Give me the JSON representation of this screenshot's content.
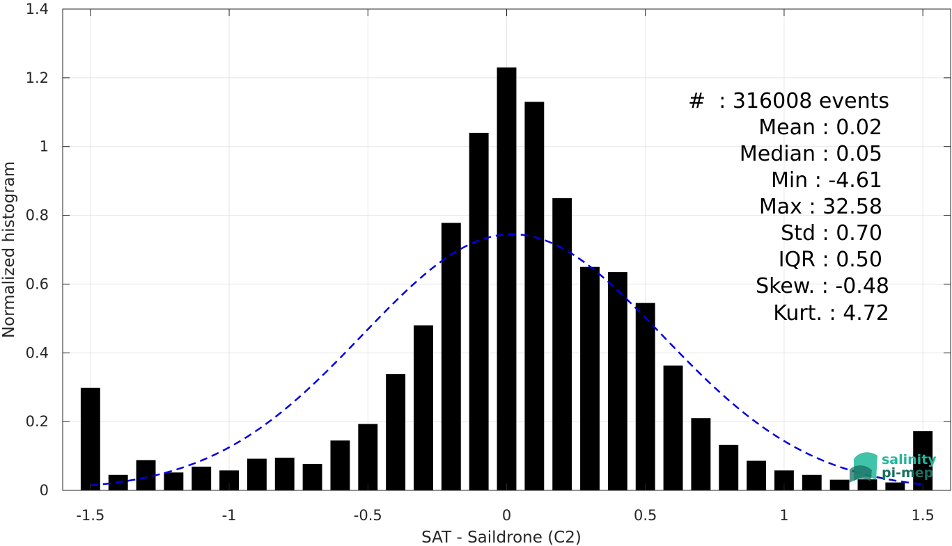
{
  "chart_data": {
    "type": "bar",
    "xlabel": "SAT - Saildrone (C2)",
    "ylabel": "Normalized histogram",
    "xlim": [
      -1.6,
      1.6
    ],
    "ylim": [
      0,
      1.4
    ],
    "grid": true,
    "x": [
      -1.5,
      -1.4,
      -1.3,
      -1.2,
      -1.1,
      -1.0,
      -0.9,
      -0.8,
      -0.7,
      -0.6,
      -0.5,
      -0.4,
      -0.3,
      -0.2,
      -0.1,
      0.0,
      0.1,
      0.2,
      0.3,
      0.4,
      0.5,
      0.6,
      0.7,
      0.8,
      0.9,
      1.0,
      1.1,
      1.2,
      1.3,
      1.4,
      1.5
    ],
    "values": [
      0.298,
      0.045,
      0.088,
      0.052,
      0.069,
      0.058,
      0.092,
      0.095,
      0.077,
      0.145,
      0.193,
      0.338,
      0.48,
      0.778,
      1.04,
      1.23,
      1.13,
      0.85,
      0.65,
      0.635,
      0.545,
      0.363,
      0.21,
      0.132,
      0.086,
      0.058,
      0.045,
      0.031,
      0.032,
      0.023,
      0.172
    ],
    "bar_color": "#000000",
    "fit_color": "#0000e6",
    "fit_curve": {
      "style": "dashed",
      "kind": "gaussian",
      "mean": 0.02,
      "std": 0.54,
      "peak": 0.745
    },
    "xticks": [
      {
        "value": -1.5,
        "label": "-1.5"
      },
      {
        "value": -1.0,
        "label": "-1"
      },
      {
        "value": -0.5,
        "label": "-0.5"
      },
      {
        "value": 0.0,
        "label": "0"
      },
      {
        "value": 0.5,
        "label": "0.5"
      },
      {
        "value": 1.0,
        "label": "1"
      },
      {
        "value": 1.5,
        "label": "1.5"
      }
    ],
    "yticks": [
      {
        "value": 0,
        "label": "0"
      },
      {
        "value": 0.2,
        "label": "0.2"
      },
      {
        "value": 0.4,
        "label": "0.4"
      },
      {
        "value": 0.6,
        "label": "0.6"
      },
      {
        "value": 0.8,
        "label": "0.8"
      },
      {
        "value": 1.0,
        "label": "1"
      },
      {
        "value": 1.2,
        "label": "1.2"
      },
      {
        "value": 1.4,
        "label": "1.4"
      }
    ],
    "annotations": [
      "#  : 316008 events",
      "Mean : 0.02",
      "Median : 0.05",
      "Min : -4.61",
      "Max : 32.58",
      "Std : 0.70",
      "IQR : 0.50",
      "Skew. : -0.48",
      "Kurt. : 4.72"
    ]
  },
  "logo": {
    "line1": "salinity",
    "line2": "pi-mep",
    "color_primary": "#1fb89a",
    "color_dark": "#1a6f63"
  }
}
